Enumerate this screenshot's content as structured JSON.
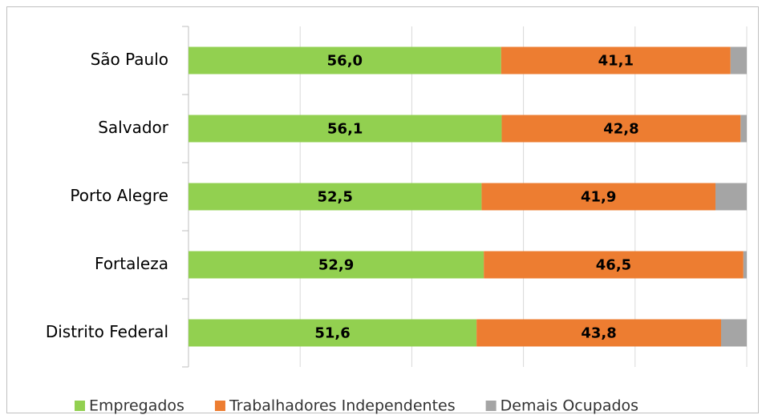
{
  "chart_data": {
    "type": "stacked_bar_horizontal",
    "categories": [
      "São Paulo",
      "Salvador",
      "Porto Alegre",
      "Fortaleza",
      "Distrito Federal"
    ],
    "series": [
      {
        "name": "Empregados",
        "color": "#92d050",
        "values": [
          56.0,
          56.1,
          52.5,
          52.9,
          51.6
        ],
        "value_labels": [
          "56,0",
          "56,1",
          "52,5",
          "52,9",
          "51,6"
        ]
      },
      {
        "name": "Trabalhadores Independentes",
        "color": "#ed7d31",
        "values": [
          41.1,
          42.8,
          41.9,
          46.5,
          43.8
        ],
        "value_labels": [
          "41,1",
          "42,8",
          "41,9",
          "46,5",
          "43,8"
        ]
      },
      {
        "name": "Demais Ocupados",
        "color": "#a5a5a5",
        "values": [
          2.9,
          1.1,
          5.6,
          0.6,
          4.6
        ]
      }
    ],
    "xlim": [
      0,
      100
    ],
    "xticks": [
      0,
      20,
      40,
      60,
      80,
      100
    ],
    "grid": true,
    "legend": "bottom"
  }
}
